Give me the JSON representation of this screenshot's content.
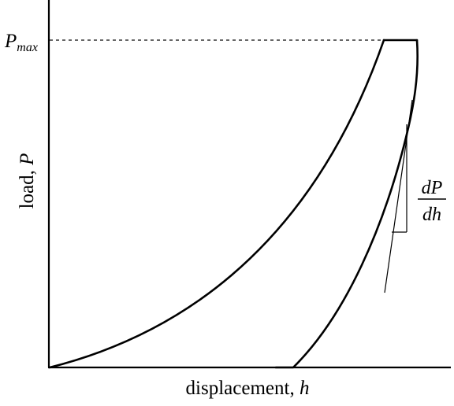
{
  "labels": {
    "y_axis_word": "load, ",
    "y_axis_symbol": "P",
    "x_axis_word": "displacement, ",
    "x_axis_symbol": "h",
    "pmax_main": "P",
    "pmax_sub": "max",
    "slope_numerator": "dP",
    "slope_denominator": "dh"
  },
  "colors": {
    "line": "#000000",
    "dashed_reference": "#333333",
    "background": "#ffffff"
  }
}
